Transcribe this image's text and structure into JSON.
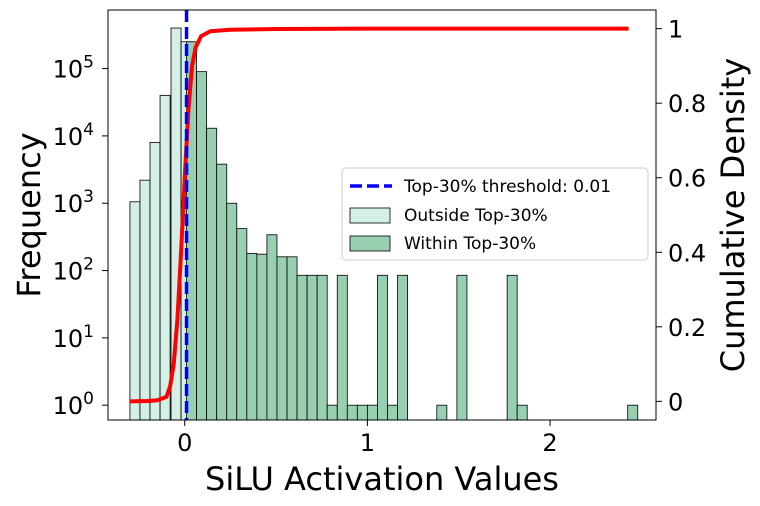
{
  "chart_data": {
    "type": "histogram",
    "xlabel": "SiLU Activation Values",
    "ylabel": "Frequency",
    "y2label": "Cumulative Density",
    "xlim": [
      -0.42,
      2.58
    ],
    "ylim_log10": [
      -0.22,
      5.87
    ],
    "y2lim": [
      -0.05,
      1.05
    ],
    "y_scale": "log",
    "xticks": [
      {
        "value": 0,
        "label": "0"
      },
      {
        "value": 1,
        "label": "1"
      },
      {
        "value": 2,
        "label": "2"
      }
    ],
    "yticks": [
      {
        "exp": 0,
        "base": "10",
        "sup": "0"
      },
      {
        "exp": 1,
        "base": "10",
        "sup": "1"
      },
      {
        "exp": 2,
        "base": "10",
        "sup": "2"
      },
      {
        "exp": 3,
        "base": "10",
        "sup": "3"
      },
      {
        "exp": 4,
        "base": "10",
        "sup": "4"
      },
      {
        "exp": 5,
        "base": "10",
        "sup": "5"
      }
    ],
    "y2ticks": [
      {
        "value": 0,
        "label": "0"
      },
      {
        "value": 0.2,
        "label": "0.2"
      },
      {
        "value": 0.4,
        "label": "0.4"
      },
      {
        "value": 0.6,
        "label": "0.6"
      },
      {
        "value": 0.8,
        "label": "0.8"
      },
      {
        "value": 1,
        "label": "1"
      }
    ],
    "bin_width": 0.055,
    "threshold": 0.01,
    "series": [
      {
        "name": "Outside Top-30%",
        "color": "#d4efe6",
        "bins": [
          {
            "x0": -0.3,
            "count": 1050
          },
          {
            "x0": -0.245,
            "count": 2200
          },
          {
            "x0": -0.19,
            "count": 8000
          },
          {
            "x0": -0.135,
            "count": 40000
          },
          {
            "x0": -0.075,
            "count": 400000
          },
          {
            "x0": -0.02,
            "count": 250000
          }
        ]
      },
      {
        "name": "Within Top-30%",
        "color": "#98cfb1",
        "bins": [
          {
            "x0": 0.01,
            "count": 250000
          },
          {
            "x0": 0.065,
            "count": 90000
          },
          {
            "x0": 0.12,
            "count": 13000
          },
          {
            "x0": 0.175,
            "count": 3800
          },
          {
            "x0": 0.23,
            "count": 1000
          },
          {
            "x0": 0.285,
            "count": 420
          },
          {
            "x0": 0.34,
            "count": 180
          },
          {
            "x0": 0.395,
            "count": 175
          },
          {
            "x0": 0.45,
            "count": 340
          },
          {
            "x0": 0.505,
            "count": 160
          },
          {
            "x0": 0.56,
            "count": 160
          },
          {
            "x0": 0.615,
            "count": 85
          },
          {
            "x0": 0.67,
            "count": 85
          },
          {
            "x0": 0.725,
            "count": 85
          },
          {
            "x0": 0.78,
            "count": 1
          },
          {
            "x0": 0.835,
            "count": 85
          },
          {
            "x0": 0.89,
            "count": 1
          },
          {
            "x0": 0.945,
            "count": 1
          },
          {
            "x0": 1.0,
            "count": 1
          },
          {
            "x0": 1.055,
            "count": 85
          },
          {
            "x0": 1.11,
            "count": 1
          },
          {
            "x0": 1.165,
            "count": 85
          },
          {
            "x0": 1.38,
            "count": 1
          },
          {
            "x0": 1.49,
            "count": 85
          },
          {
            "x0": 1.765,
            "count": 85
          },
          {
            "x0": 1.82,
            "count": 1
          },
          {
            "x0": 2.425,
            "count": 1
          }
        ]
      }
    ],
    "cumulative": {
      "name": "Cumulative Density",
      "color": "#ff0000",
      "points": [
        [
          -0.3,
          0.0
        ],
        [
          -0.2,
          0.001
        ],
        [
          -0.15,
          0.003
        ],
        [
          -0.1,
          0.012
        ],
        [
          -0.08,
          0.04
        ],
        [
          -0.06,
          0.1
        ],
        [
          -0.04,
          0.22
        ],
        [
          -0.02,
          0.4
        ],
        [
          0.0,
          0.6
        ],
        [
          0.02,
          0.78
        ],
        [
          0.04,
          0.9
        ],
        [
          0.06,
          0.95
        ],
        [
          0.09,
          0.98
        ],
        [
          0.14,
          0.993
        ],
        [
          0.25,
          0.997
        ],
        [
          0.5,
          0.999
        ],
        [
          1.0,
          1.0
        ],
        [
          2.43,
          1.0
        ]
      ]
    },
    "legend": {
      "placement": "center-right",
      "entries": [
        {
          "label": "Top-30% threshold: 0.01",
          "kind": "line-dashed",
          "color": "#0000ff"
        },
        {
          "label": "Outside Top-30%",
          "kind": "patch",
          "color": "#d4efe6"
        },
        {
          "label": "Within Top-30%",
          "kind": "patch",
          "color": "#98cfb1"
        }
      ]
    }
  }
}
